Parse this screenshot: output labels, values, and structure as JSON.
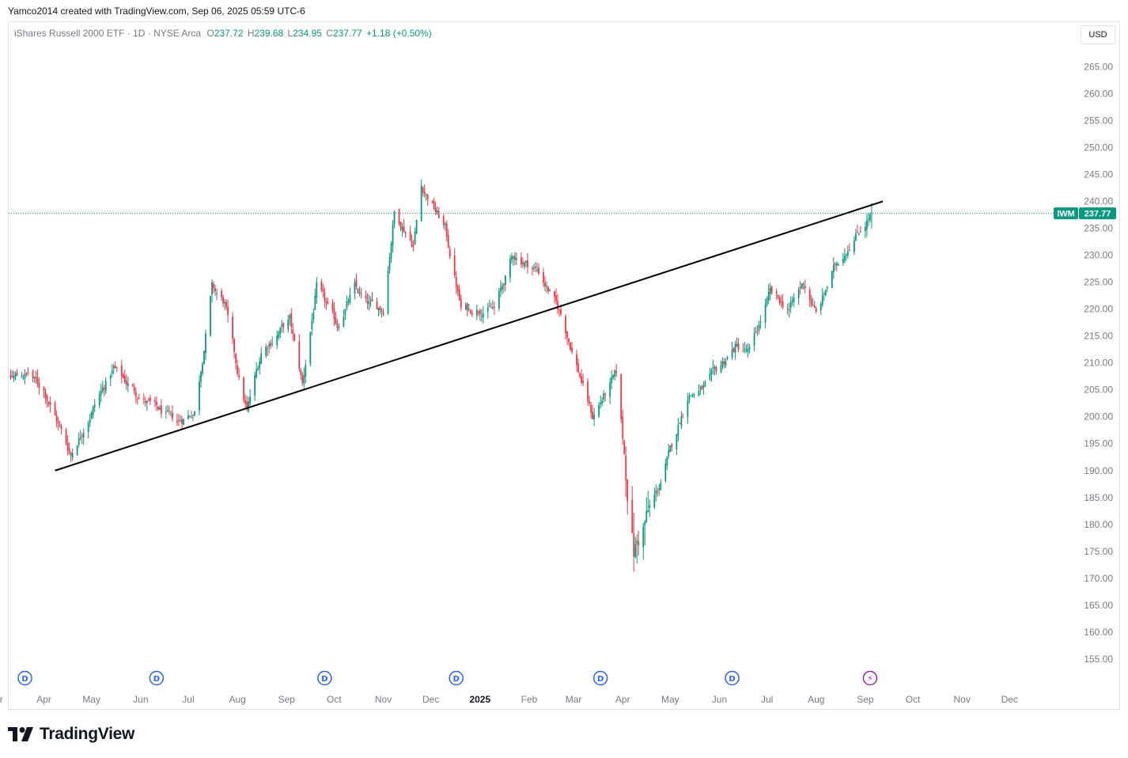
{
  "header": {
    "attribution": "Yamco2014 created with TradingView.com, Sep 06, 2025 05:59 UTC-6"
  },
  "legend": {
    "title": "iShares Russell 2000 ETF · 1D · NYSE Arca",
    "o_label": "O",
    "o": "237.72",
    "h_label": "H",
    "h": "239.68",
    "l_label": "L",
    "l": "234.95",
    "c_label": "C",
    "c": "237.77",
    "change": "+1.18 (+0.50%)"
  },
  "currency_button": "USD",
  "brand": {
    "name": "TradingView"
  },
  "colors": {
    "up": "#089981",
    "down": "#f23645",
    "trendline": "#000000",
    "event_blue": "#2962ff",
    "event_purple": "#9c27b0"
  },
  "chart_data": {
    "type": "candlestick",
    "symbol_label": "IWM",
    "last_price": 237.77,
    "last_price_label": "237.77",
    "ylim": [
      150,
      270
    ],
    "yticks": [
      "265.00",
      "260.00",
      "255.00",
      "250.00",
      "245.00",
      "240.00",
      "235.00",
      "230.00",
      "225.00",
      "220.00",
      "215.00",
      "210.00",
      "205.00",
      "200.00",
      "195.00",
      "190.00",
      "185.00",
      "180.00",
      "175.00",
      "170.00",
      "165.00",
      "160.00",
      "155.00"
    ],
    "xticks": [
      "Mar",
      "Apr",
      "May",
      "Jun",
      "Jul",
      "Aug",
      "Sep",
      "Oct",
      "Nov",
      "Dec",
      "2025",
      "Feb",
      "Mar",
      "Apr",
      "May",
      "Jun",
      "Jul",
      "Aug",
      "Sep",
      "Oct",
      "Nov",
      "Dec"
    ],
    "xtick_dates": [
      "2024-03-01",
      "2024-04-01",
      "2024-05-01",
      "2024-06-01",
      "2024-07-01",
      "2024-08-01",
      "2024-09-01",
      "2024-10-01",
      "2024-11-01",
      "2024-12-01",
      "2025-01-01",
      "2025-02-01",
      "2025-03-01",
      "2025-04-01",
      "2025-05-01",
      "2025-06-01",
      "2025-07-01",
      "2025-08-01",
      "2025-09-01",
      "2025-10-01",
      "2025-11-01",
      "2025-12-01"
    ],
    "trendline": [
      {
        "date": "2024-04-08",
        "price": 190.0
      },
      {
        "date": "2025-09-12",
        "price": 240.0
      }
    ],
    "events": [
      {
        "date": "2024-03-20",
        "label": "D",
        "kind": "dividend"
      },
      {
        "date": "2024-06-11",
        "label": "D",
        "kind": "dividend"
      },
      {
        "date": "2024-09-25",
        "label": "D",
        "kind": "dividend"
      },
      {
        "date": "2024-12-17",
        "label": "D",
        "kind": "dividend"
      },
      {
        "date": "2025-03-18",
        "label": "D",
        "kind": "dividend"
      },
      {
        "date": "2025-06-09",
        "label": "D",
        "kind": "dividend"
      },
      {
        "date": "2025-09-04",
        "label": "⚡",
        "kind": "flash"
      }
    ],
    "anchors": [
      [
        "2024-02-26",
        195
      ],
      [
        "2024-03-08",
        207
      ],
      [
        "2024-03-22",
        208
      ],
      [
        "2024-04-01",
        205
      ],
      [
        "2024-04-18",
        193
      ],
      [
        "2024-05-06",
        204
      ],
      [
        "2024-05-15",
        209
      ],
      [
        "2024-06-03",
        203
      ],
      [
        "2024-06-24",
        199
      ],
      [
        "2024-07-05",
        201
      ],
      [
        "2024-07-11",
        213
      ],
      [
        "2024-07-16",
        224
      ],
      [
        "2024-07-24",
        221
      ],
      [
        "2024-08-02",
        207
      ],
      [
        "2024-08-07",
        201
      ],
      [
        "2024-08-16",
        212
      ],
      [
        "2024-09-03",
        218
      ],
      [
        "2024-09-11",
        206
      ],
      [
        "2024-09-20",
        224
      ],
      [
        "2024-10-03",
        217
      ],
      [
        "2024-10-14",
        224
      ],
      [
        "2024-10-21",
        221
      ],
      [
        "2024-11-01",
        220
      ],
      [
        "2024-11-08",
        238
      ],
      [
        "2024-11-20",
        232
      ],
      [
        "2024-11-25",
        243
      ],
      [
        "2024-12-10",
        235
      ],
      [
        "2024-12-20",
        220
      ],
      [
        "2025-01-10",
        220
      ],
      [
        "2025-01-22",
        230
      ],
      [
        "2025-02-07",
        227
      ],
      [
        "2025-02-21",
        219
      ],
      [
        "2025-03-13",
        200
      ],
      [
        "2025-03-28",
        208
      ],
      [
        "2025-04-08",
        175
      ],
      [
        "2025-04-24",
        187
      ],
      [
        "2025-05-12",
        204
      ],
      [
        "2025-05-21",
        205
      ],
      [
        "2025-06-11",
        213
      ],
      [
        "2025-06-20",
        212
      ],
      [
        "2025-07-03",
        223
      ],
      [
        "2025-07-15",
        220
      ],
      [
        "2025-07-24",
        225
      ],
      [
        "2025-08-01",
        219
      ],
      [
        "2025-08-13",
        228
      ],
      [
        "2025-08-22",
        232
      ],
      [
        "2025-09-05",
        237.77
      ]
    ]
  }
}
